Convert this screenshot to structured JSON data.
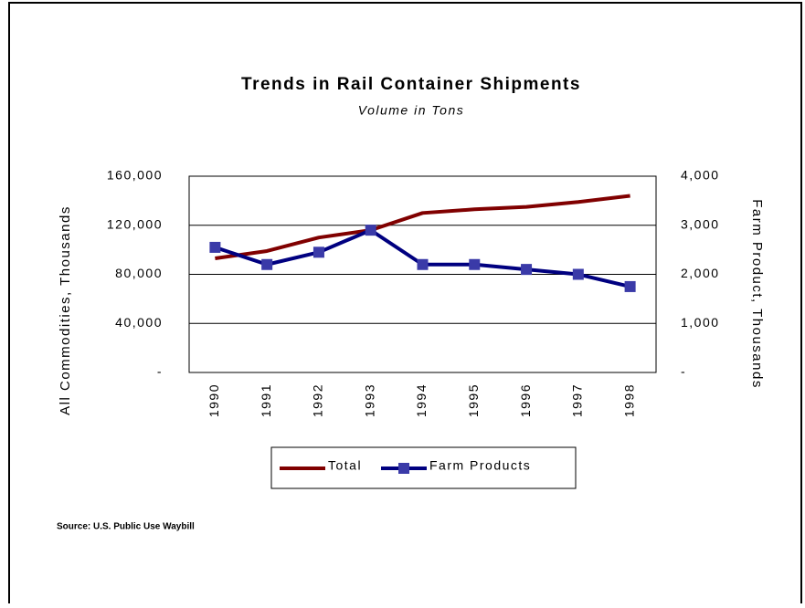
{
  "chart_data": {
    "type": "line",
    "title": "Trends in Rail Container Shipments",
    "subtitle": "Volume in Tons",
    "y_label": "All Commodities, Thousands",
    "y2_label": "Farm Product, Thousands",
    "source": "Source: U.S. Public Use Waybill",
    "categories": [
      "1990",
      "1991",
      "1992",
      "1993",
      "1994",
      "1995",
      "1996",
      "1997",
      "1998"
    ],
    "series": [
      {
        "name": "Total",
        "color": "#800000",
        "values": [
          93000,
          99000,
          110000,
          116000,
          130000,
          133000,
          135000,
          139000,
          144000
        ]
      },
      {
        "name": "Farm Products",
        "color": "#000080",
        "marker_color": "#3a3aa8",
        "axis": "y2",
        "values": [
          2550,
          2200,
          2450,
          2900,
          2200,
          2200,
          2100,
          2000,
          1750
        ]
      }
    ],
    "ylim": [
      0,
      160000
    ],
    "yticks": [
      {
        "value": 0,
        "label": "-"
      },
      {
        "value": 40000,
        "label": "40,000"
      },
      {
        "value": 80000,
        "label": "80,000"
      },
      {
        "value": 120000,
        "label": "120,000"
      },
      {
        "value": 160000,
        "label": "160,000"
      }
    ],
    "y2lim": [
      0,
      4000
    ],
    "y2ticks": [
      {
        "value": 0,
        "label": "-"
      },
      {
        "value": 1000,
        "label": "1,000"
      },
      {
        "value": 2000,
        "label": "2,000"
      },
      {
        "value": 3000,
        "label": "3,000"
      },
      {
        "value": 4000,
        "label": "4,000"
      }
    ],
    "grid": true,
    "legend": "bottom"
  }
}
